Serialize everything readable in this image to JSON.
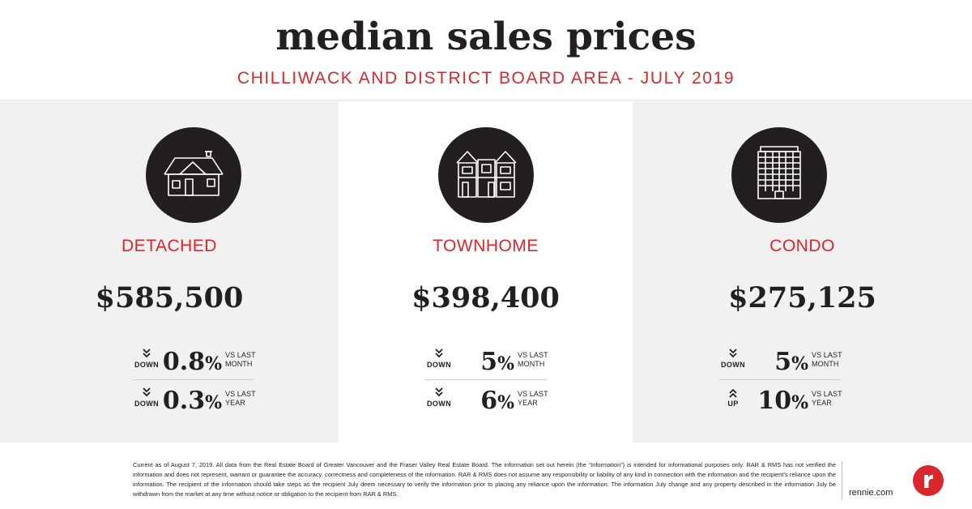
{
  "header": {
    "title": "median sales prices",
    "subtitle": "CHILLIWACK AND DISTRICT BOARD AREA - JULY 2019"
  },
  "panels": [
    {
      "icon": "detached-house-icon",
      "type": "DETACHED",
      "price": "$585,500",
      "stats": [
        {
          "direction": "DOWN",
          "value": "0.8",
          "unit": "%",
          "vs_line1": "VS LAST",
          "vs_line2": "MONTH"
        },
        {
          "direction": "DOWN",
          "value": "0.3",
          "unit": "%",
          "vs_line1": "VS LAST",
          "vs_line2": "YEAR"
        }
      ]
    },
    {
      "icon": "townhome-icon",
      "type": "TOWNHOME",
      "price": "$398,400",
      "stats": [
        {
          "direction": "DOWN",
          "value": "5",
          "unit": "%",
          "vs_line1": "VS LAST",
          "vs_line2": "MONTH"
        },
        {
          "direction": "DOWN",
          "value": "6",
          "unit": "%",
          "vs_line1": "VS LAST",
          "vs_line2": "YEAR"
        }
      ]
    },
    {
      "icon": "condo-building-icon",
      "type": "CONDO",
      "price": "$275,125",
      "stats": [
        {
          "direction": "DOWN",
          "value": "5",
          "unit": "%",
          "vs_line1": "VS LAST",
          "vs_line2": "MONTH"
        },
        {
          "direction": "UP",
          "value": "10",
          "unit": "%",
          "vs_line1": "VS LAST",
          "vs_line2": "YEAR"
        }
      ]
    }
  ],
  "footer": {
    "disclaimer": "Current as of August 7, 2019. All data from the Real Estate Board of Greater Vancouver and the Fraser Valley Real Estate Board. The information set out herein (the “Information”) is intended for informational purposes only. RAR & RMS has not verified the information and does not represent, warrant or guarantee the accuracy, correctness and completeness of the information. RAR & RMS does not assume any responsibility or liability of any kind in connection with the information and the recipient’s reliance upon the information. The recipient of the information should take steps as the recipient July deem necessary to verify the information prior to placing any reliance upon the information. The information July change and any property described in the information July be withdrawn from the market at any time without notice or obligation to the recipient from RAR & RMS.",
    "domain": "rennie.com",
    "logo_letter": "r"
  },
  "colors": {
    "accent_red": "#d9272e",
    "text_dark": "#231f20",
    "panel_gray": "#f1f1f1"
  }
}
